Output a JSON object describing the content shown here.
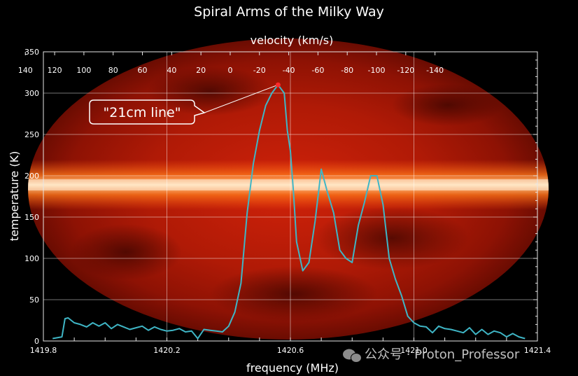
{
  "chart_data": {
    "type": "line",
    "title": "Spiral Arms of the Milky Way",
    "xlabel": "frequency (MHz)",
    "ylabel": "temperature (K)",
    "top_axis_label": "velocity (km/s)",
    "xlim": [
      1419.8,
      1421.4
    ],
    "ylim": [
      0,
      350
    ],
    "x_ticks": [
      1419.8,
      1420.2,
      1420.6,
      1421.0,
      1421.4
    ],
    "x_tick_labels": [
      "1419.8",
      "1420.2",
      "1420.6",
      "1421.0",
      "1421.4"
    ],
    "y_ticks": [
      0,
      50,
      100,
      150,
      200,
      250,
      300,
      350
    ],
    "y_tick_labels": [
      "0",
      "50",
      "100",
      "150",
      "200",
      "250",
      "300",
      "350"
    ],
    "top_tick_labels": [
      "140",
      "120",
      "100",
      "80",
      "60",
      "40",
      "20",
      "0",
      "-20",
      "-40",
      "-60",
      "-80",
      "-100",
      "-120",
      "-140"
    ],
    "top_tick_velocity_values": [
      140,
      120,
      100,
      80,
      60,
      40,
      20,
      0,
      -20,
      -40,
      -60,
      -80,
      -100,
      -120,
      -140
    ],
    "rest_frequency_mhz": 1420.405,
    "grid": true,
    "line_color": "#3fb6c6",
    "marker_color": "#ff2a2a",
    "background": "Milky Way all-sky map",
    "annotation": {
      "text": "\"21cm line\"",
      "x": 1420.59,
      "y": 310
    },
    "series": [
      {
        "x": [
          1419.83,
          1419.86,
          1419.87,
          1419.88,
          1419.9,
          1419.92,
          1419.94,
          1419.96,
          1419.98,
          1420.0,
          1420.02,
          1420.04,
          1420.06,
          1420.08,
          1420.1,
          1420.12,
          1420.14,
          1420.16,
          1420.18,
          1420.2,
          1420.22,
          1420.24,
          1420.26,
          1420.28,
          1420.3,
          1420.32,
          1420.34,
          1420.36,
          1420.38,
          1420.4,
          1420.42,
          1420.44,
          1420.46,
          1420.48,
          1420.5,
          1420.52,
          1420.54,
          1420.56,
          1420.58,
          1420.59,
          1420.6,
          1420.61,
          1420.62,
          1420.64,
          1420.66,
          1420.68,
          1420.7,
          1420.72,
          1420.74,
          1420.76,
          1420.78,
          1420.8,
          1420.82,
          1420.84,
          1420.86,
          1420.88,
          1420.9,
          1420.92,
          1420.94,
          1420.96,
          1420.98,
          1421.0,
          1421.02,
          1421.04,
          1421.06,
          1421.08,
          1421.1,
          1421.12,
          1421.14,
          1421.16,
          1421.18,
          1421.2,
          1421.22,
          1421.24,
          1421.26,
          1421.28,
          1421.3,
          1421.32,
          1421.34,
          1421.36
        ],
        "y": [
          3,
          5,
          27,
          28,
          22,
          20,
          17,
          22,
          18,
          22,
          15,
          20,
          17,
          14,
          16,
          18,
          13,
          17,
          14,
          12,
          13,
          15,
          11,
          12,
          3,
          14,
          13,
          12,
          11,
          18,
          35,
          70,
          155,
          215,
          255,
          285,
          300,
          310,
          300,
          255,
          230,
          180,
          120,
          85,
          95,
          145,
          208,
          180,
          155,
          110,
          100,
          95,
          140,
          168,
          200,
          200,
          165,
          100,
          75,
          55,
          30,
          22,
          18,
          17,
          10,
          18,
          15,
          14,
          12,
          10,
          16,
          8,
          14,
          8,
          12,
          10,
          5,
          9,
          5,
          3
        ]
      }
    ]
  },
  "watermark": {
    "text": "公众号 · Proton_Professor"
  }
}
